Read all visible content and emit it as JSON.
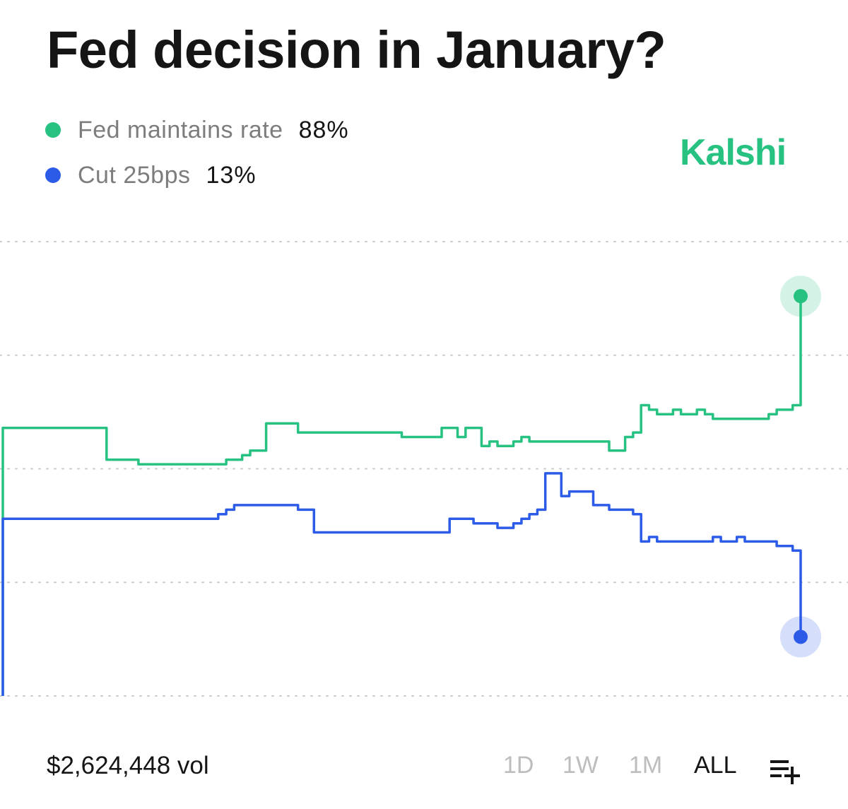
{
  "title": "Fed decision in January?",
  "brand": {
    "name": "Kalshi",
    "color": "#27c281"
  },
  "legend": [
    {
      "label": "Fed maintains rate",
      "value": "88%",
      "color": "#27c281"
    },
    {
      "label": "Cut 25bps",
      "value": "13%",
      "color": "#2c5be8"
    }
  ],
  "footer": {
    "volume": "$2,624,448 vol",
    "ranges": [
      "1D",
      "1W",
      "1M",
      "ALL"
    ],
    "active_range": "ALL",
    "add_icon": "list-add-icon"
  },
  "chart_data": {
    "type": "line",
    "title": "Fed decision in January?",
    "xlabel": "",
    "ylabel": "",
    "ylim": [
      0,
      100
    ],
    "grid": true,
    "axis_labels_visible": false,
    "x": [
      0,
      1,
      2,
      3,
      4,
      5,
      6,
      7,
      8,
      9,
      10,
      11,
      12,
      13,
      14,
      15,
      16,
      17,
      18,
      19,
      20,
      21,
      22,
      23,
      24,
      25,
      26,
      27,
      28,
      29,
      30,
      31,
      32,
      33,
      34,
      35,
      36,
      37,
      38,
      39,
      40,
      41,
      42,
      43,
      44,
      45,
      46,
      47,
      48,
      49,
      50,
      51,
      52,
      53,
      54,
      55,
      56,
      57,
      58,
      59,
      60,
      61,
      62,
      63,
      64,
      65,
      66,
      67,
      68,
      69,
      70,
      71,
      72,
      73,
      74,
      75,
      76,
      77,
      78,
      79,
      80,
      81,
      82,
      83,
      84,
      85,
      86,
      87,
      88,
      89,
      90,
      91,
      92,
      93,
      94,
      95,
      96,
      97,
      98,
      99,
      100
    ],
    "series": [
      {
        "name": "Fed maintains rate",
        "color": "#27c281",
        "values": [
          59,
          59,
          59,
          59,
          59,
          59,
          59,
          59,
          59,
          59,
          59,
          59,
          59,
          52,
          52,
          52,
          52,
          51,
          51,
          51,
          51,
          51,
          51,
          51,
          51,
          51,
          51,
          51,
          52,
          52,
          53,
          54,
          54,
          60,
          60,
          60,
          60,
          58,
          58,
          58,
          58,
          58,
          58,
          58,
          58,
          58,
          58,
          58,
          58,
          58,
          57,
          57,
          57,
          57,
          57,
          59,
          59,
          57,
          59,
          59,
          55,
          56,
          55,
          55,
          56,
          57,
          56,
          56,
          56,
          56,
          56,
          56,
          56,
          56,
          56,
          56,
          54,
          54,
          57,
          58,
          64,
          63,
          62,
          62,
          63,
          62,
          62,
          63,
          62,
          61,
          61,
          61,
          61,
          61,
          61,
          61,
          62,
          63,
          63,
          64,
          88
        ]
      },
      {
        "name": "Cut 25bps",
        "color": "#2c5be8",
        "values": [
          39,
          39,
          39,
          39,
          39,
          39,
          39,
          39,
          39,
          39,
          39,
          39,
          39,
          39,
          39,
          39,
          39,
          39,
          39,
          39,
          39,
          39,
          39,
          39,
          39,
          39,
          39,
          40,
          41,
          42,
          42,
          42,
          42,
          42,
          42,
          42,
          42,
          41,
          41,
          36,
          36,
          36,
          36,
          36,
          36,
          36,
          36,
          36,
          36,
          36,
          36,
          36,
          36,
          36,
          36,
          36,
          39,
          39,
          39,
          38,
          38,
          38,
          37,
          37,
          38,
          39,
          40,
          41,
          49,
          49,
          44,
          45,
          45,
          45,
          42,
          42,
          41,
          41,
          41,
          40,
          34,
          35,
          34,
          34,
          34,
          34,
          34,
          34,
          34,
          35,
          34,
          34,
          35,
          34,
          34,
          34,
          34,
          33,
          33,
          32,
          13
        ]
      }
    ]
  }
}
